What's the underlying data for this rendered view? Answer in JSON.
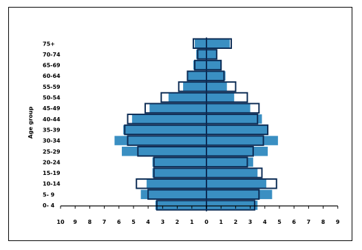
{
  "chart_data": {
    "type": "bar",
    "orientation": "horizontal-population-pyramid",
    "title": "",
    "ylabel": "Age group",
    "xlabel": "",
    "xlim": [
      -10,
      9
    ],
    "x_ticks": [
      -10,
      -9,
      -8,
      -7,
      -6,
      -5,
      -4,
      -3,
      -2,
      -1,
      0,
      1,
      2,
      3,
      4,
      5,
      6,
      7,
      8,
      9
    ],
    "x_tick_labels": [
      "10",
      "9",
      "8",
      "7",
      "6",
      "5",
      "4",
      "3",
      "2",
      "1",
      "0",
      "1",
      "2",
      "3",
      "4",
      "5",
      "6",
      "7",
      "8",
      "9"
    ],
    "categories": [
      "0- 4",
      "5- 9",
      "10-14",
      "15-19",
      "20-24",
      "25-29",
      "30-34",
      "35-39",
      "40-44",
      "45-49",
      "50-54",
      "55-59",
      "60-64",
      "65-69",
      "70-74",
      "75+"
    ],
    "series": [
      {
        "side": "left",
        "style": "filled",
        "color": "#3a8fc2",
        "values": [
          3.5,
          4.5,
          4.1,
          3.7,
          3.7,
          5.8,
          6.3,
          5.7,
          5.1,
          3.9,
          2.6,
          1.6,
          1.3,
          0.9,
          0.7,
          0.8
        ]
      },
      {
        "side": "right",
        "style": "filled",
        "color": "#3a8fc2",
        "values": [
          3.5,
          4.5,
          4.1,
          3.5,
          3.2,
          4.2,
          4.9,
          4.2,
          3.8,
          3.0,
          1.9,
          1.4,
          1.3,
          1.0,
          0.7,
          1.6
        ]
      },
      {
        "side": "left",
        "style": "outline",
        "color": "#0b2b54",
        "values": [
          3.4,
          4.0,
          4.8,
          3.6,
          3.6,
          4.7,
          5.4,
          5.6,
          5.4,
          4.2,
          3.1,
          1.9,
          1.3,
          0.8,
          0.6,
          0.9
        ]
      },
      {
        "side": "right",
        "style": "outline",
        "color": "#0b2b54",
        "values": [
          3.3,
          3.6,
          4.8,
          3.8,
          2.8,
          3.2,
          3.9,
          4.2,
          3.5,
          3.6,
          2.8,
          2.0,
          1.2,
          1.0,
          0.7,
          1.7
        ]
      }
    ],
    "grid": false,
    "legend": "none"
  }
}
